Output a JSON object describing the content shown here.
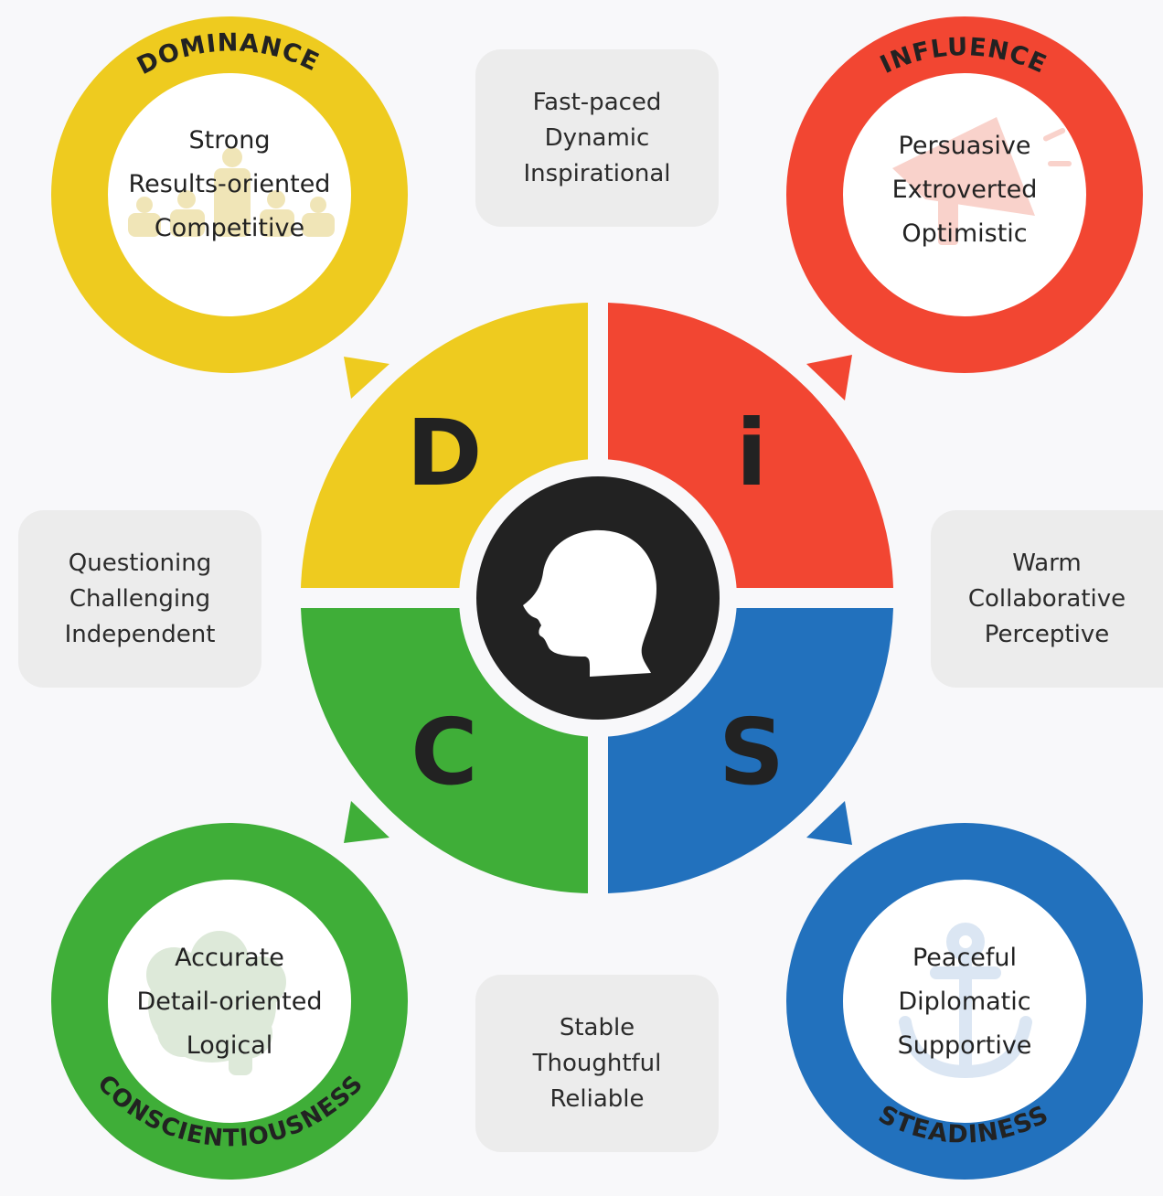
{
  "colors": {
    "dominance": "#eecb1f",
    "influence": "#f24632",
    "steadiness": "#2271bd",
    "conscientiousness": "#3fae38",
    "center": "#222222"
  },
  "quadrants": {
    "d": {
      "letter": "D"
    },
    "i": {
      "letter": "i"
    },
    "s": {
      "letter": "S"
    },
    "c": {
      "letter": "C"
    }
  },
  "styles": {
    "dominance": {
      "title": "DOMINANCE",
      "traits": [
        "Strong",
        "Results-oriented",
        "Competitive"
      ],
      "icon": "team-icon"
    },
    "influence": {
      "title": "INFLUENCE",
      "traits": [
        "Persuasive",
        "Extroverted",
        "Optimistic"
      ],
      "icon": "megaphone-icon"
    },
    "steadiness": {
      "title": "STEADINESS",
      "traits": [
        "Peaceful",
        "Diplomatic",
        "Supportive"
      ],
      "icon": "anchor-icon"
    },
    "conscientiousness": {
      "title": "CONSCIENTIOUSNESS",
      "traits": [
        "Accurate",
        "Detail-oriented",
        "Logical"
      ],
      "icon": "brain-icon"
    }
  },
  "boxes": {
    "top": [
      "Fast-paced",
      "Dynamic",
      "Inspirational"
    ],
    "left": [
      "Questioning",
      "Challenging",
      "Independent"
    ],
    "right": [
      "Warm",
      "Collaborative",
      "Perceptive"
    ],
    "bottom": [
      "Stable",
      "Thoughtful",
      "Reliable"
    ]
  },
  "center_icon": "head-profile-icon"
}
